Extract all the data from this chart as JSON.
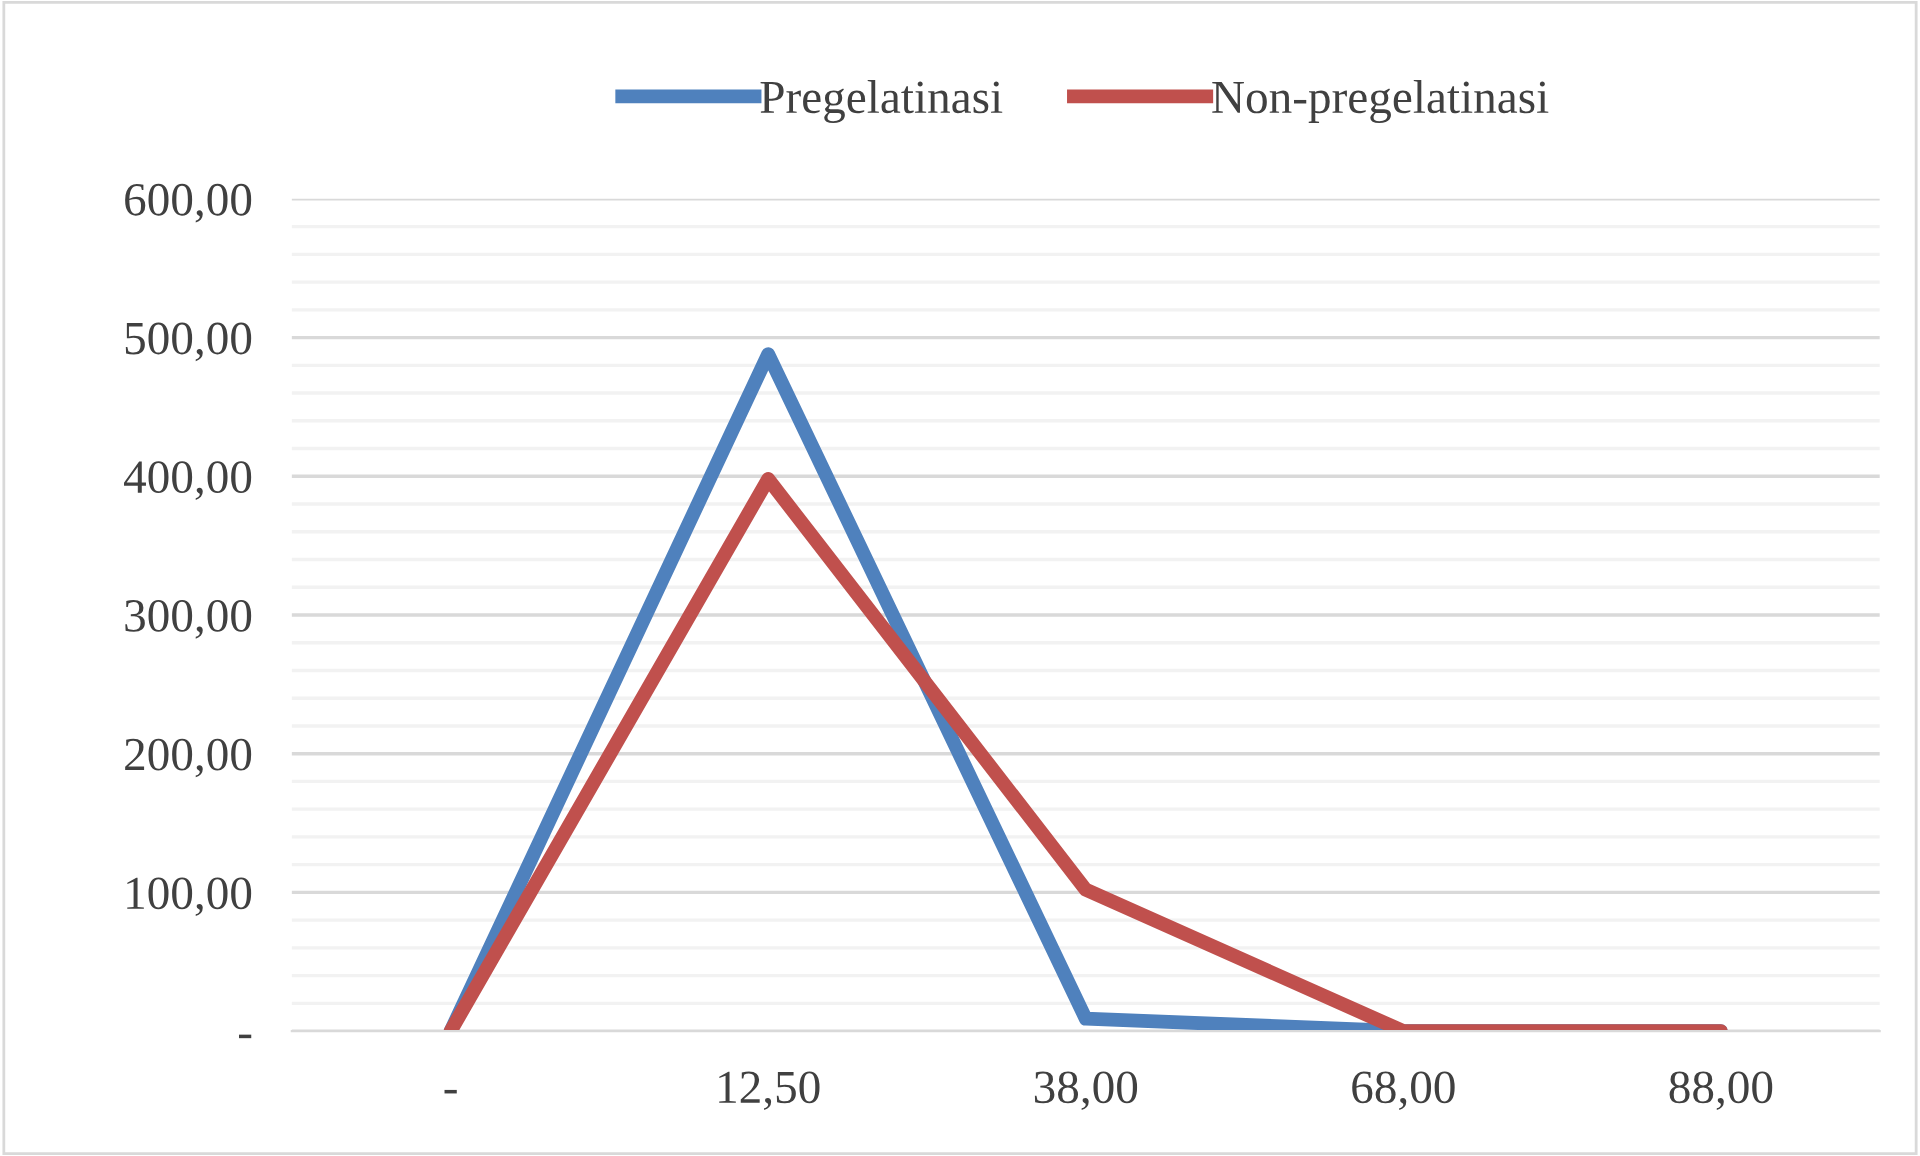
{
  "chart_data": {
    "type": "line",
    "categories": [
      "-",
      "12,50",
      "38,00",
      "68,00",
      "88,00"
    ],
    "series": [
      {
        "name": "Pregelatinasi",
        "color": "#4f81bd",
        "values": [
          0,
          488,
          9,
          0,
          0
        ]
      },
      {
        "name": "Non-pregelatinasi",
        "color": "#c0504d",
        "values": [
          0,
          398,
          102,
          0,
          0
        ]
      }
    ],
    "ylim": [
      0,
      600
    ],
    "yticks": [
      {
        "value": 0,
        "label": "-"
      },
      {
        "value": 20,
        "label": null
      },
      {
        "value": 40,
        "label": null
      },
      {
        "value": 60,
        "label": null
      },
      {
        "value": 80,
        "label": null
      },
      {
        "value": 100,
        "label": "100,00"
      },
      {
        "value": 120,
        "label": null
      },
      {
        "value": 140,
        "label": null
      },
      {
        "value": 160,
        "label": null
      },
      {
        "value": 180,
        "label": null
      },
      {
        "value": 200,
        "label": "200,00"
      },
      {
        "value": 220,
        "label": null
      },
      {
        "value": 240,
        "label": null
      },
      {
        "value": 260,
        "label": null
      },
      {
        "value": 280,
        "label": null
      },
      {
        "value": 300,
        "label": "300,00"
      },
      {
        "value": 320,
        "label": null
      },
      {
        "value": 340,
        "label": null
      },
      {
        "value": 360,
        "label": null
      },
      {
        "value": 380,
        "label": null
      },
      {
        "value": 400,
        "label": "400,00"
      },
      {
        "value": 420,
        "label": null
      },
      {
        "value": 440,
        "label": null
      },
      {
        "value": 460,
        "label": null
      },
      {
        "value": 480,
        "label": null
      },
      {
        "value": 500,
        "label": "500,00"
      },
      {
        "value": 520,
        "label": null
      },
      {
        "value": 540,
        "label": null
      },
      {
        "value": 560,
        "label": null
      },
      {
        "value": 580,
        "label": null
      },
      {
        "value": 600,
        "label": "600,00"
      }
    ],
    "grid": "y",
    "legend": "top",
    "marker": "none",
    "line_style": "solid"
  }
}
